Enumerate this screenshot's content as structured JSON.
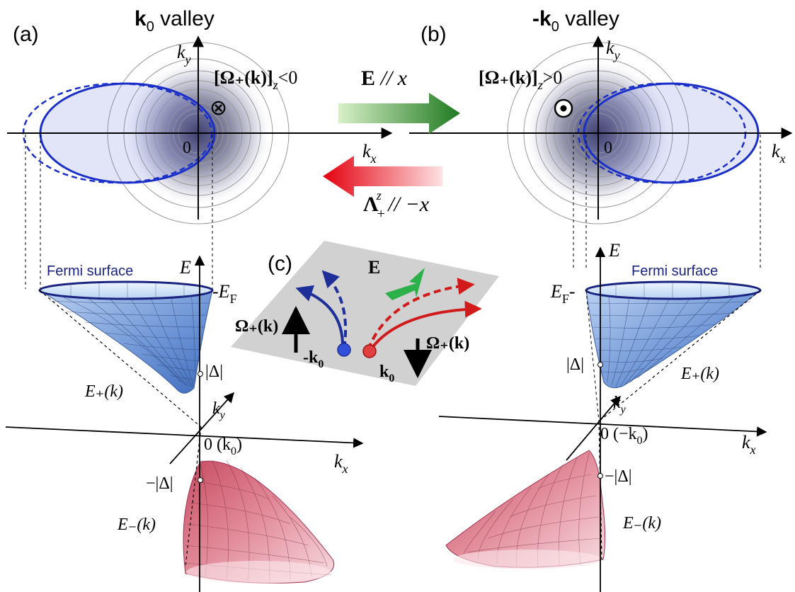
{
  "panel_a": {
    "label": "(a)",
    "title_main": "k",
    "title_sub": "0",
    "title_rest": " valley",
    "axis_kx": "k",
    "axis_kx_sub": "x",
    "axis_ky": "k",
    "axis_ky_sub": "y",
    "origin": "0",
    "curvature": "[Ω₊(k)]",
    "curvature_sub": "z",
    "curvature_rel": "<0",
    "symbol": "⊗"
  },
  "panel_b": {
    "label": "(b)",
    "title_main": "-k",
    "title_sub": "0",
    "title_rest": " valley",
    "axis_kx": "k",
    "axis_kx_sub": "x",
    "axis_ky": "k",
    "axis_ky_sub": "y",
    "origin": "0",
    "curvature": "[Ω₊(k)]",
    "curvature_sub": "z",
    "curvature_rel": ">0",
    "symbol": "⊙"
  },
  "arrows": {
    "field": "E",
    "field_dir": " // x",
    "lambda": "Λ",
    "lambda_sup": "z",
    "lambda_sub": "+",
    "lambda_dir": " // −x",
    "field_color": "#2e8b2e",
    "lambda_color": "#e8161b"
  },
  "bands_left": {
    "fermi_surface": "Fermi surface",
    "energy_axis": "E",
    "fermi_level": "E",
    "fermi_level_sub": "F",
    "gap_plus": "|Δ|",
    "gap_minus": "−|Δ|",
    "upper_band": "E₊(k)",
    "lower_band": "E₋(k)",
    "ky": "k",
    "ky_sub": "y",
    "kx": "k",
    "kx_sub": "x",
    "origin": "0 (k",
    "origin_sub": "0",
    "origin_close": ")"
  },
  "bands_right": {
    "fermi_surface": "Fermi surface",
    "energy_axis": "E",
    "fermi_level": "E",
    "fermi_level_sub": "F",
    "gap_plus": "|Δ|",
    "gap_minus": "−|Δ|",
    "upper_band": "E₊(k)",
    "lower_band": "E₋(k)",
    "ky": "k",
    "ky_sub": "y",
    "kx": "k",
    "kx_sub": "x",
    "origin": "0 (−k",
    "origin_sub": "0",
    "origin_close": ")"
  },
  "panel_c": {
    "label": "(c)",
    "field": "E",
    "omega_left": "Ω₊(k)",
    "omega_right": "Ω₊(k)",
    "valley_left": "-k",
    "valley_left_sub": "0",
    "valley_right": "k",
    "valley_right_sub": "0",
    "blue": "#1f2f9a",
    "red": "#d11a1a"
  }
}
